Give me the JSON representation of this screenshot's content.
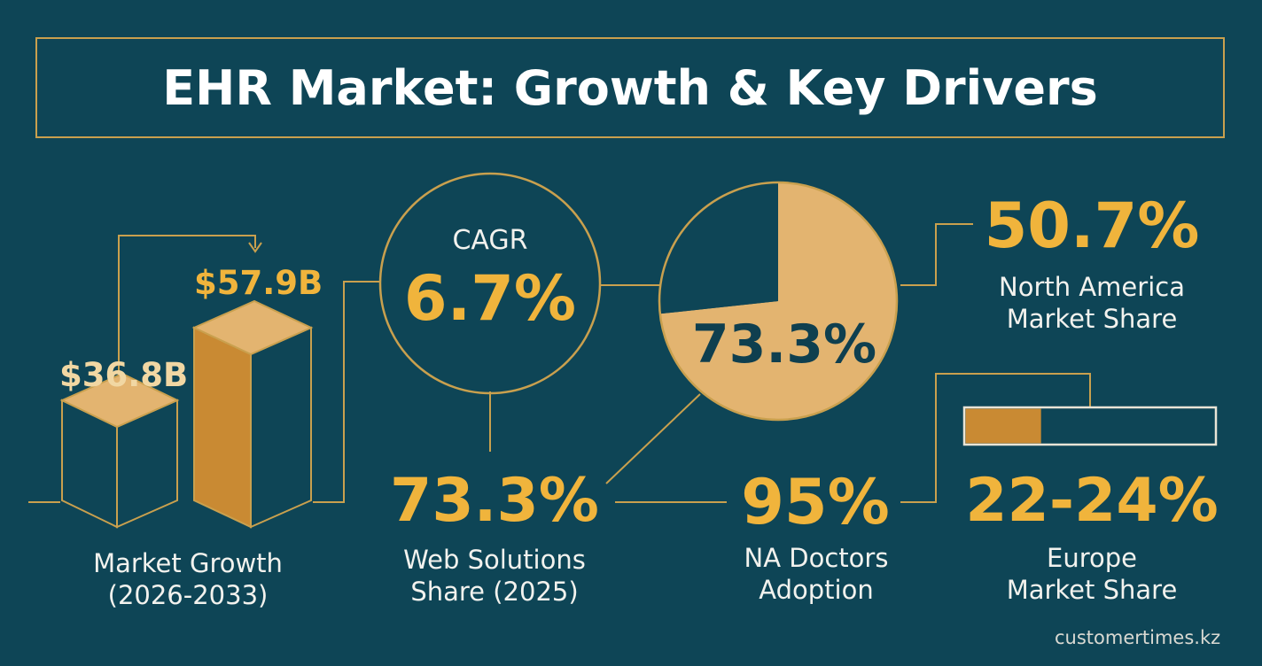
{
  "title": "EHR Market: Growth & Key Drivers",
  "footer": "customertimes.kz",
  "colors": {
    "background": "#0e4556",
    "accent_gold": "#f0b43c",
    "tan": "#e3b470",
    "dark_bar": "#c98a33",
    "line": "#c9a04e"
  },
  "chart_data": [
    {
      "type": "bar",
      "categories": [
        "",
        ""
      ],
      "values": [
        36.8,
        57.9
      ],
      "value_labels": [
        "$36.8B",
        "$57.9B"
      ],
      "label_lines": [
        "Market Growth",
        "(2026-2033)"
      ]
    },
    {
      "type": "table",
      "metric": "CAGR",
      "value": "6.7%"
    },
    {
      "type": "pie",
      "values": [
        73.3,
        26.7
      ],
      "center_label": "73.3%"
    },
    {
      "type": "table",
      "value": "73.3%",
      "label_lines": [
        "Web Solutions",
        "Share (2025)"
      ]
    },
    {
      "type": "table",
      "value": "50.7%",
      "label_lines": [
        "North America",
        "Market Share"
      ]
    },
    {
      "type": "table",
      "value": "95%",
      "label_lines": [
        "NA Doctors",
        "Adoption"
      ]
    },
    {
      "type": "bar",
      "values": [
        0.3
      ],
      "value": "22-24%",
      "label_lines": [
        "Europe",
        "Market Share"
      ]
    }
  ]
}
